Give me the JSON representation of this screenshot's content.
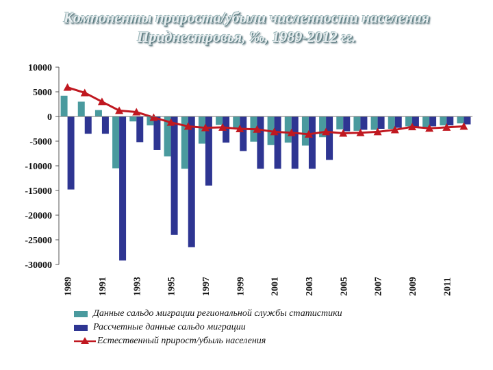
{
  "chart_data": {
    "type": "bar",
    "title_line1": "Компоненты прироста/убыли численности населения",
    "title_line2": "Приднестровья, ‰, 1989-2012 гг.",
    "ylim": [
      -30000,
      10000
    ],
    "yticks": [
      "10000",
      "5000",
      "0",
      "-5000",
      "-10000",
      "-15000",
      "-20000",
      "-25000",
      "-30000"
    ],
    "ytick_values": [
      10000,
      5000,
      0,
      -5000,
      -10000,
      -15000,
      -20000,
      -25000,
      -30000
    ],
    "categories": [
      "1989",
      "1990",
      "1991",
      "1992",
      "1993",
      "1994",
      "1995",
      "1996",
      "1997",
      "1998",
      "1999",
      "2000",
      "2001",
      "2002",
      "2003",
      "2004",
      "2005",
      "2006",
      "2007",
      "2008",
      "2009",
      "2010",
      "2011",
      "2012"
    ],
    "xtick_labels": [
      "1989",
      "1991",
      "1993",
      "1995",
      "1997",
      "1999",
      "2001",
      "2003",
      "2005",
      "2007",
      "2009",
      "2011"
    ],
    "series": [
      {
        "name": "Данные сальдо миграции региональной службы статистики",
        "kind": "bar",
        "color": "#4a9a9e",
        "values": [
          4200,
          3000,
          1300,
          -10500,
          -1000,
          -1800,
          -8100,
          -10600,
          -5500,
          -1700,
          -2300,
          -5100,
          -5800,
          -5300,
          -5900,
          -4200,
          -2600,
          -2900,
          -2700,
          -2500,
          -2000,
          -2200,
          -1800,
          -1400
        ]
      },
      {
        "name": "Рассчетные данные сальдо миграции",
        "kind": "bar",
        "color": "#2e3592",
        "values": [
          -14800,
          -3500,
          -3500,
          -29200,
          -5200,
          -6800,
          -24000,
          -26500,
          -14000,
          -5300,
          -7000,
          -10600,
          -10600,
          -10600,
          -10600,
          -8800,
          -3000,
          -2700,
          -2500,
          -2300,
          -2200,
          -2000,
          -1800,
          -1600
        ]
      },
      {
        "name": "Естественный прирост/убыль населения",
        "kind": "line",
        "color": "#c01820",
        "values": [
          5900,
          4800,
          3000,
          1200,
          900,
          -200,
          -1200,
          -2000,
          -2300,
          -2200,
          -2500,
          -2600,
          -3100,
          -3300,
          -3600,
          -3100,
          -3400,
          -3300,
          -3100,
          -2700,
          -2100,
          -2400,
          -2200,
          -2000
        ]
      }
    ]
  }
}
